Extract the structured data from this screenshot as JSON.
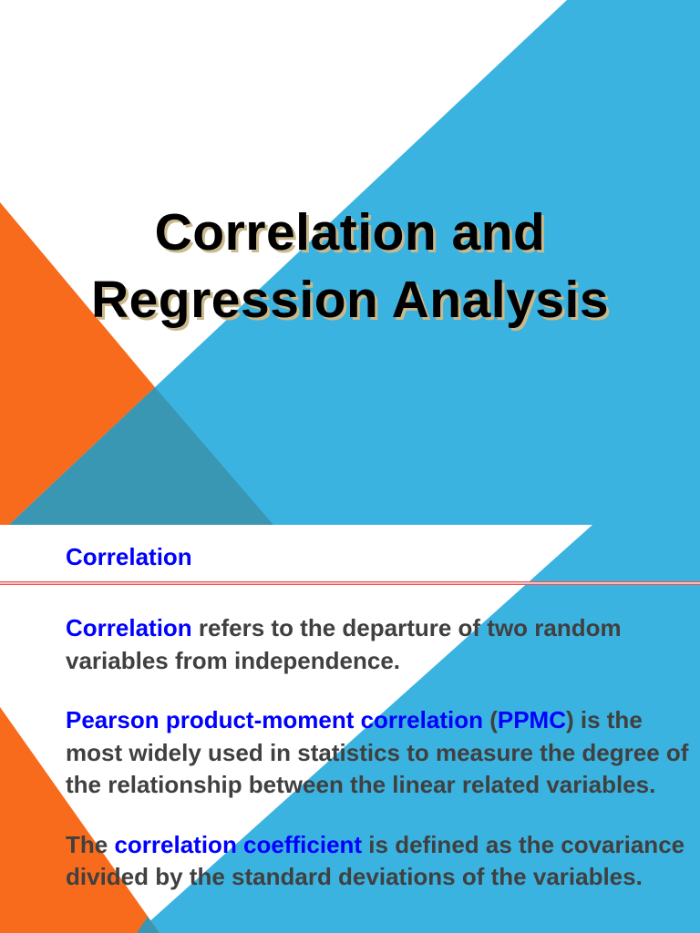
{
  "colors": {
    "blue": "#3bb3e0",
    "orange": "#f96b1c",
    "teal": "#3a97b3",
    "highlight": "#0000ff",
    "body_text": "#404040"
  },
  "slide1": {
    "title_line1": "Correlation and",
    "title_line2": "Regression Analysis"
  },
  "slide2": {
    "heading": "Correlation",
    "p1": {
      "hl": "Correlation",
      "text": " refers to the departure of two random variables from independence."
    },
    "p2": {
      "hl": "Pearson product-moment correlation",
      "mid": " (",
      "hl2": "PPMC",
      "text": ") is the most widely used in statistics to measure the degree of the relationship between the linear related variables."
    },
    "p3": {
      "pre": "The ",
      "hl": "correlation coefficient",
      "text": " is defined as the covariance divided by the standard deviations of the variables."
    }
  }
}
